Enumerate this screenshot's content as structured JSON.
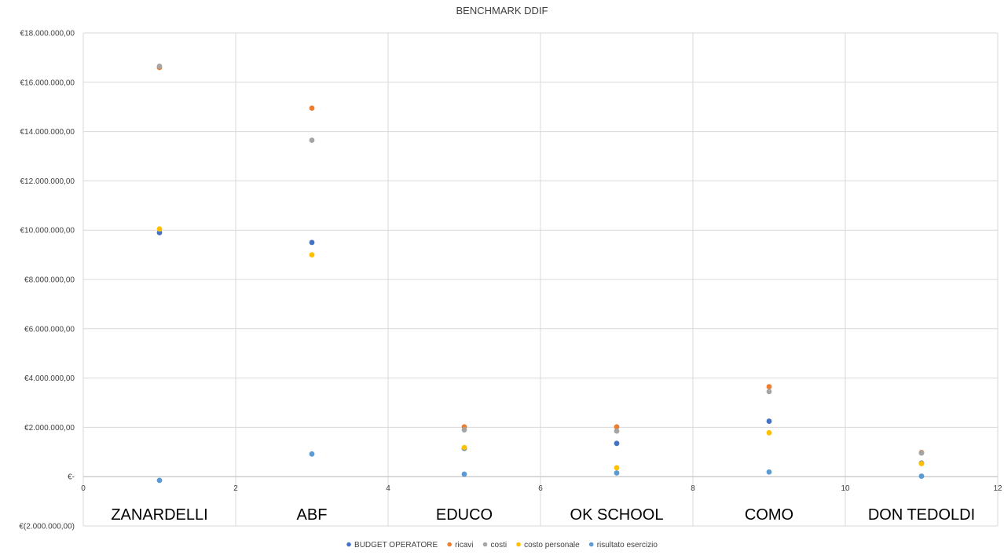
{
  "chart_data": {
    "type": "scatter",
    "title": "BENCHMARK DDIF",
    "xlabel": "",
    "ylabel": "",
    "xlim": [
      0,
      12
    ],
    "ylim": [
      -2000000,
      18000000
    ],
    "x_ticks": [
      "0",
      "2",
      "4",
      "6",
      "8",
      "10",
      "12"
    ],
    "y_ticks": [
      "€(2.000.000,00)",
      "€-",
      "€2.000.000,00",
      "€4.000.000,00",
      "€6.000.000,00",
      "€8.000.000,00",
      "€10.000.000,00",
      "€12.000.000,00",
      "€14.000.000,00",
      "€16.000.000,00",
      "€18.000.000,00"
    ],
    "y_tick_values": [
      -2000000,
      0,
      2000000,
      4000000,
      6000000,
      8000000,
      10000000,
      12000000,
      14000000,
      16000000,
      18000000
    ],
    "x_tick_values": [
      0,
      2,
      4,
      6,
      8,
      10,
      12
    ],
    "grid": true,
    "legend_position": "bottom",
    "category_labels": [
      {
        "x": 1,
        "label": "ZANARDELLI"
      },
      {
        "x": 3,
        "label": "ABF"
      },
      {
        "x": 5,
        "label": "EDUCO"
      },
      {
        "x": 7,
        "label": "OK SCHOOL"
      },
      {
        "x": 9,
        "label": "COMO"
      },
      {
        "x": 11,
        "label": "DON TEDOLDI"
      }
    ],
    "series": [
      {
        "name": "BUDGET OPERATORE",
        "color": "#4472C4",
        "points": [
          [
            1,
            9900000
          ],
          [
            3,
            9500000
          ],
          [
            5,
            1150000
          ],
          [
            7,
            1350000
          ],
          [
            9,
            2250000
          ],
          [
            11,
            550000
          ]
        ]
      },
      {
        "name": "ricavi",
        "color": "#ED7D31",
        "points": [
          [
            1,
            16600000
          ],
          [
            3,
            14950000
          ],
          [
            5,
            2020000
          ],
          [
            7,
            2020000
          ],
          [
            9,
            3650000
          ],
          [
            11,
            980000
          ]
        ]
      },
      {
        "name": "costi",
        "color": "#A5A5A5",
        "points": [
          [
            1,
            16650000
          ],
          [
            3,
            13650000
          ],
          [
            5,
            1900000
          ],
          [
            7,
            1850000
          ],
          [
            9,
            3450000
          ],
          [
            11,
            960000
          ]
        ]
      },
      {
        "name": "costo personale",
        "color": "#FFC000",
        "points": [
          [
            1,
            10050000
          ],
          [
            3,
            9000000
          ],
          [
            5,
            1180000
          ],
          [
            7,
            360000
          ],
          [
            9,
            1780000
          ],
          [
            11,
            530000
          ]
        ]
      },
      {
        "name": "risultato esercizio",
        "color": "#5B9BD5",
        "points": [
          [
            1,
            -150000
          ],
          [
            3,
            920000
          ],
          [
            5,
            100000
          ],
          [
            7,
            150000
          ],
          [
            9,
            190000
          ],
          [
            11,
            20000
          ]
        ]
      }
    ]
  }
}
